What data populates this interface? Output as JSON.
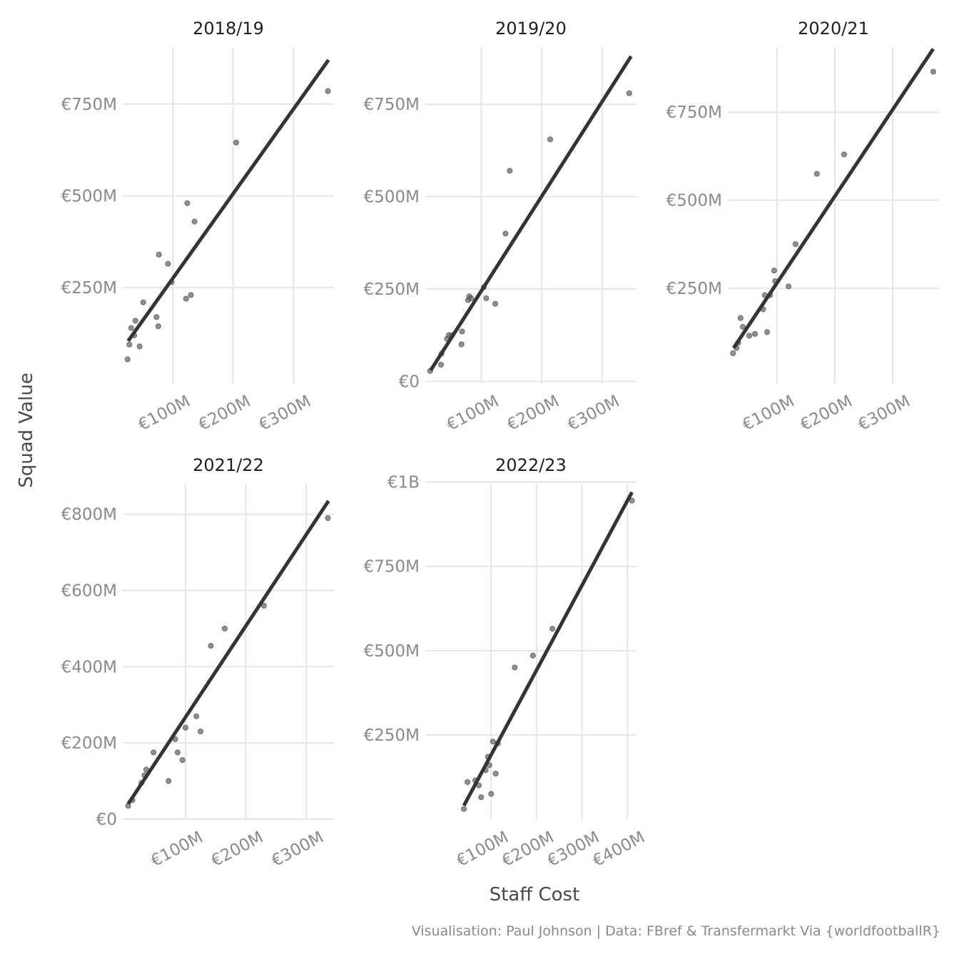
{
  "caption": "Visualisation: Paul Johnson | Data: FBref & Transfermarkt Via {worldfootballR}",
  "chart_data": {
    "type": "scatter",
    "xlabel": "Staff Cost",
    "ylabel": "Squad Value",
    "grid": true,
    "facets": [
      {
        "title": "2018/19",
        "xlim": [
          17,
          367
        ],
        "ylim": [
          -10,
          905
        ],
        "xticks": [
          100,
          200,
          300
        ],
        "xtick_labels": [
          "€100M",
          "€200M",
          "€300M"
        ],
        "yticks": [
          250,
          500,
          750
        ],
        "ytick_labels": [
          "€250M",
          "€500M",
          "€750M"
        ],
        "fit": [
          [
            26,
            105
          ],
          [
            358,
            870
          ]
        ],
        "points": [
          [
            25,
            55
          ],
          [
            28,
            95
          ],
          [
            31,
            140
          ],
          [
            36,
            120
          ],
          [
            38,
            160
          ],
          [
            45,
            90
          ],
          [
            51,
            210
          ],
          [
            73,
            170
          ],
          [
            76,
            145
          ],
          [
            77,
            340
          ],
          [
            92,
            315
          ],
          [
            98,
            265
          ],
          [
            122,
            220
          ],
          [
            124,
            480
          ],
          [
            130,
            230
          ],
          [
            136,
            430
          ],
          [
            205,
            645
          ],
          [
            357,
            785
          ]
        ]
      },
      {
        "title": "2019/20",
        "xlim": [
          7,
          357
        ],
        "ylim": [
          -5,
          905
        ],
        "xticks": [
          100,
          200,
          300
        ],
        "xtick_labels": [
          "€100M",
          "€200M",
          "€300M"
        ],
        "yticks": [
          0,
          250,
          500,
          750
        ],
        "ytick_labels": [
          "€0",
          "€250M",
          "€500M",
          "€750M"
        ],
        "fit": [
          [
            16,
            30
          ],
          [
            348,
            880
          ]
        ],
        "points": [
          [
            15,
            28
          ],
          [
            33,
            45
          ],
          [
            34,
            75
          ],
          [
            43,
            115
          ],
          [
            46,
            125
          ],
          [
            51,
            125
          ],
          [
            67,
            100
          ],
          [
            68,
            135
          ],
          [
            78,
            220
          ],
          [
            80,
            230
          ],
          [
            83,
            225
          ],
          [
            104,
            255
          ],
          [
            108,
            225
          ],
          [
            123,
            210
          ],
          [
            140,
            400
          ],
          [
            147,
            570
          ],
          [
            214,
            655
          ],
          [
            345,
            780
          ]
        ]
      },
      {
        "title": "2020/21",
        "xlim": [
          15,
          380
        ],
        "ylim": [
          -20,
          935
        ],
        "xticks": [
          100,
          200,
          300
        ],
        "xtick_labels": [
          "€100M",
          "€200M",
          "€300M"
        ],
        "yticks": [
          250,
          500,
          750
        ],
        "ytick_labels": [
          "€250M",
          "€500M",
          "€750M"
        ],
        "fit": [
          [
            25,
            80
          ],
          [
            370,
            930
          ]
        ],
        "points": [
          [
            24,
            65
          ],
          [
            30,
            80
          ],
          [
            33,
            95
          ],
          [
            37,
            165
          ],
          [
            41,
            140
          ],
          [
            52,
            115
          ],
          [
            62,
            120
          ],
          [
            76,
            190
          ],
          [
            79,
            230
          ],
          [
            83,
            125
          ],
          [
            88,
            230
          ],
          [
            95,
            300
          ],
          [
            97,
            270
          ],
          [
            120,
            255
          ],
          [
            132,
            375
          ],
          [
            169,
            575
          ],
          [
            216,
            630
          ],
          [
            370,
            865
          ]
        ]
      },
      {
        "title": "2021/22",
        "xlim": [
          -4,
          346
        ],
        "ylim": [
          0,
          880
        ],
        "xticks": [
          100,
          200,
          300
        ],
        "xtick_labels": [
          "€100M",
          "€200M",
          "€300M"
        ],
        "yticks": [
          0,
          200,
          400,
          600,
          800
        ],
        "ytick_labels": [
          "€0",
          "€200M",
          "€400M",
          "€600M",
          "€800M"
        ],
        "fit": [
          [
            5,
            40
          ],
          [
            337,
            835
          ]
        ],
        "points": [
          [
            5,
            35
          ],
          [
            12,
            50
          ],
          [
            27,
            95
          ],
          [
            32,
            115
          ],
          [
            35,
            130
          ],
          [
            47,
            175
          ],
          [
            72,
            100
          ],
          [
            83,
            210
          ],
          [
            87,
            175
          ],
          [
            95,
            155
          ],
          [
            100,
            240
          ],
          [
            118,
            270
          ],
          [
            125,
            230
          ],
          [
            142,
            455
          ],
          [
            165,
            500
          ],
          [
            230,
            560
          ],
          [
            336,
            790
          ]
        ]
      },
      {
        "title": "2022/23",
        "xlim": [
          -45,
          420
        ],
        "ylim": [
          0,
          995
        ],
        "xticks": [
          100,
          200,
          300,
          400
        ],
        "xtick_labels": [
          "€100M",
          "€200M",
          "€300M",
          "€400M"
        ],
        "yticks": [
          250,
          500,
          750,
          1000
        ],
        "ytick_labels": [
          "€250M",
          "€500M",
          "€750M",
          "€1B"
        ],
        "fit": [
          [
            40,
            40
          ],
          [
            410,
            970
          ]
        ],
        "points": [
          [
            40,
            30
          ],
          [
            48,
            110
          ],
          [
            65,
            115
          ],
          [
            73,
            100
          ],
          [
            78,
            65
          ],
          [
            88,
            145
          ],
          [
            93,
            185
          ],
          [
            96,
            160
          ],
          [
            100,
            75
          ],
          [
            104,
            230
          ],
          [
            110,
            135
          ],
          [
            115,
            225
          ],
          [
            152,
            450
          ],
          [
            192,
            485
          ],
          [
            235,
            565
          ],
          [
            410,
            945
          ]
        ]
      }
    ]
  }
}
